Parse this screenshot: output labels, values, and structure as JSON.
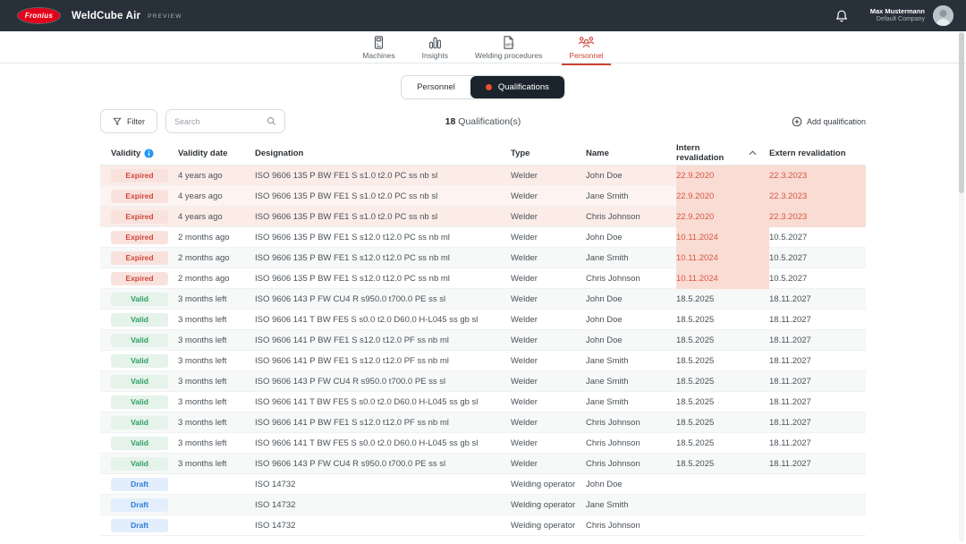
{
  "header": {
    "brand": "Fronius",
    "app_name": "WeldCube Air",
    "preview_label": "PREVIEW",
    "user_name": "Max Mustermann",
    "company": "Default Company"
  },
  "nav": {
    "tabs": [
      {
        "label": "Machines",
        "icon": "machine-icon",
        "active": false
      },
      {
        "label": "Insights",
        "icon": "insights-icon",
        "active": false
      },
      {
        "label": "Welding procedures",
        "icon": "wps-document-icon",
        "active": false
      },
      {
        "label": "Personnel",
        "icon": "personnel-icon",
        "active": true
      }
    ]
  },
  "toggle": {
    "options": [
      {
        "label": "Personnel",
        "selected": false
      },
      {
        "label": "Qualifications",
        "selected": true
      }
    ]
  },
  "toolbar": {
    "filter_label": "Filter",
    "search_placeholder": "Search",
    "count": "18",
    "count_label": "Qualification(s)",
    "add_label": "Add qualification"
  },
  "colors": {
    "brand_red": "#e2001a",
    "nav_active_red": "#cb4331",
    "toggle_dark": "#1b242c",
    "toggle_dot": "#e8502f",
    "expired_text": "#d0473a",
    "valid_text": "#2f9e60",
    "draft_text": "#2d7dd8",
    "alert_cell_bg": "#f9dcd4",
    "info_icon_blue": "#2196f3"
  },
  "table": {
    "columns": [
      "Validity",
      "Validity date",
      "Designation",
      "Type",
      "Name",
      "Intern revalidation",
      "Extern revalidation"
    ],
    "sort_column": "Intern revalidation",
    "sort_direction": "asc",
    "rows": [
      {
        "status": "Expired",
        "validity_date": "4 years ago",
        "designation": "ISO 9606 135 P BW FE1 S s1.0 t2.0 PC ss nb sl",
        "type": "Welder",
        "name": "John Doe",
        "intern": "22.9.2020",
        "extern": "22.3.2023",
        "row_highlight": true,
        "intern_highlight": true,
        "extern_highlight": true
      },
      {
        "status": "Expired",
        "validity_date": "4 years ago",
        "designation": "ISO 9606 135 P BW FE1 S s1.0 t2.0 PC ss nb sl",
        "type": "Welder",
        "name": "Jane Smith",
        "intern": "22.9.2020",
        "extern": "22.3.2023",
        "row_highlight": true,
        "intern_highlight": true,
        "extern_highlight": true
      },
      {
        "status": "Expired",
        "validity_date": "4 years ago",
        "designation": "ISO 9606 135 P BW FE1 S s1.0 t2.0 PC ss nb sl",
        "type": "Welder",
        "name": "Chris Johnson",
        "intern": "22.9.2020",
        "extern": "22.3.2023",
        "row_highlight": true,
        "intern_highlight": true,
        "extern_highlight": true
      },
      {
        "status": "Expired",
        "validity_date": "2 months ago",
        "designation": "ISO 9606 135 P BW FE1 S s12.0 t12.0 PC ss nb ml",
        "type": "Welder",
        "name": "John Doe",
        "intern": "10.11.2024",
        "extern": "10.5.2027",
        "row_highlight": false,
        "intern_highlight": true,
        "extern_highlight": false
      },
      {
        "status": "Expired",
        "validity_date": "2 months ago",
        "designation": "ISO 9606 135 P BW FE1 S s12.0 t12.0 PC ss nb ml",
        "type": "Welder",
        "name": "Jane Smith",
        "intern": "10.11.2024",
        "extern": "10.5.2027",
        "row_highlight": false,
        "intern_highlight": true,
        "extern_highlight": false
      },
      {
        "status": "Expired",
        "validity_date": "2 months ago",
        "designation": "ISO 9606 135 P BW FE1 S s12.0 t12.0 PC ss nb ml",
        "type": "Welder",
        "name": "Chris Johnson",
        "intern": "10.11.2024",
        "extern": "10.5.2027",
        "row_highlight": false,
        "intern_highlight": true,
        "extern_highlight": false
      },
      {
        "status": "Valid",
        "validity_date": "3 months left",
        "designation": "ISO 9606 143 P FW CU4 R s950.0 t700.0 PE ss sl",
        "type": "Welder",
        "name": "John Doe",
        "intern": "18.5.2025",
        "extern": "18.11.2027",
        "row_highlight": false,
        "intern_highlight": false,
        "extern_highlight": false
      },
      {
        "status": "Valid",
        "validity_date": "3 months left",
        "designation": "ISO 9606 141 T BW FE5 S s0.0 t2.0 D60.0 H-L045 ss gb sl",
        "type": "Welder",
        "name": "John Doe",
        "intern": "18.5.2025",
        "extern": "18.11.2027",
        "row_highlight": false,
        "intern_highlight": false,
        "extern_highlight": false
      },
      {
        "status": "Valid",
        "validity_date": "3 months left",
        "designation": "ISO 9606 141 P BW FE1 S s12.0 t12.0 PF ss nb ml",
        "type": "Welder",
        "name": "John Doe",
        "intern": "18.5.2025",
        "extern": "18.11.2027",
        "row_highlight": false,
        "intern_highlight": false,
        "extern_highlight": false
      },
      {
        "status": "Valid",
        "validity_date": "3 months left",
        "designation": "ISO 9606 141 P BW FE1 S s12.0 t12.0 PF ss nb ml",
        "type": "Welder",
        "name": "Jane Smith",
        "intern": "18.5.2025",
        "extern": "18.11.2027",
        "row_highlight": false,
        "intern_highlight": false,
        "extern_highlight": false
      },
      {
        "status": "Valid",
        "validity_date": "3 months left",
        "designation": "ISO 9606 143 P FW CU4 R s950.0 t700.0 PE ss sl",
        "type": "Welder",
        "name": "Jane Smith",
        "intern": "18.5.2025",
        "extern": "18.11.2027",
        "row_highlight": false,
        "intern_highlight": false,
        "extern_highlight": false
      },
      {
        "status": "Valid",
        "validity_date": "3 months left",
        "designation": "ISO 9606 141 T BW FE5 S s0.0 t2.0 D60.0 H-L045 ss gb sl",
        "type": "Welder",
        "name": "Jane Smith",
        "intern": "18.5.2025",
        "extern": "18.11.2027",
        "row_highlight": false,
        "intern_highlight": false,
        "extern_highlight": false
      },
      {
        "status": "Valid",
        "validity_date": "3 months left",
        "designation": "ISO 9606 141 P BW FE1 S s12.0 t12.0 PF ss nb ml",
        "type": "Welder",
        "name": "Chris Johnson",
        "intern": "18.5.2025",
        "extern": "18.11.2027",
        "row_highlight": false,
        "intern_highlight": false,
        "extern_highlight": false
      },
      {
        "status": "Valid",
        "validity_date": "3 months left",
        "designation": "ISO 9606 141 T BW FE5 S s0.0 t2.0 D60.0 H-L045 ss gb sl",
        "type": "Welder",
        "name": "Chris Johnson",
        "intern": "18.5.2025",
        "extern": "18.11.2027",
        "row_highlight": false,
        "intern_highlight": false,
        "extern_highlight": false
      },
      {
        "status": "Valid",
        "validity_date": "3 months left",
        "designation": "ISO 9606 143 P FW CU4 R s950.0 t700.0 PE ss sl",
        "type": "Welder",
        "name": "Chris Johnson",
        "intern": "18.5.2025",
        "extern": "18.11.2027",
        "row_highlight": false,
        "intern_highlight": false,
        "extern_highlight": false
      },
      {
        "status": "Draft",
        "validity_date": "",
        "designation": "ISO 14732",
        "type": "Welding operator",
        "name": "John Doe",
        "intern": "",
        "extern": "",
        "row_highlight": false,
        "intern_highlight": false,
        "extern_highlight": false
      },
      {
        "status": "Draft",
        "validity_date": "",
        "designation": "ISO 14732",
        "type": "Welding operator",
        "name": "Jane Smith",
        "intern": "",
        "extern": "",
        "row_highlight": false,
        "intern_highlight": false,
        "extern_highlight": false
      },
      {
        "status": "Draft",
        "validity_date": "",
        "designation": "ISO 14732",
        "type": "Welding operator",
        "name": "Chris Johnson",
        "intern": "",
        "extern": "",
        "row_highlight": false,
        "intern_highlight": false,
        "extern_highlight": false
      }
    ]
  }
}
